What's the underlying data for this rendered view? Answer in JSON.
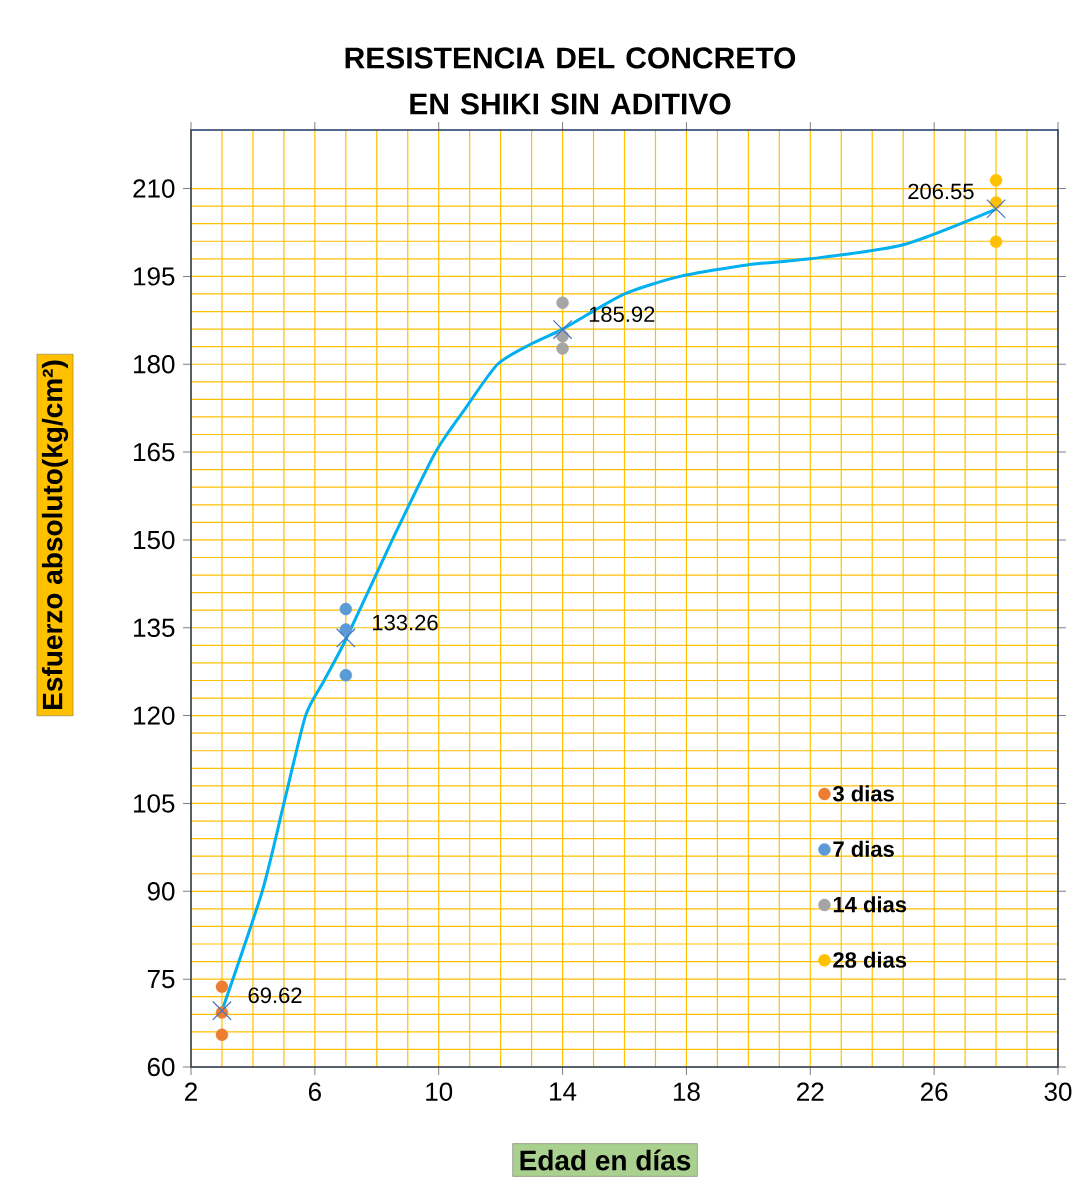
{
  "chart_data": {
    "type": "scatter",
    "title": "RESISTENCIA DEL CONCRETO EN SHIKI SIN ADITIVO",
    "xlabel": "Edad en días",
    "ylabel": "Esfuerzo absoluto(kg/cm²)",
    "xlim": [
      2,
      30
    ],
    "ylim": [
      60,
      220
    ],
    "xticks": [
      2,
      6,
      10,
      14,
      18,
      22,
      26,
      30
    ],
    "yticks": [
      60,
      75,
      90,
      105,
      120,
      135,
      150,
      165,
      180,
      195,
      210
    ],
    "grid": true,
    "legend": "bottom right",
    "series": [
      {
        "name": "3 dias",
        "color": "#ed7d31",
        "marker": "circle",
        "x": [
          3,
          3,
          3
        ],
        "values": [
          73.7,
          69.3,
          65.5
        ]
      },
      {
        "name": "7 dias",
        "color": "#5b9bd5",
        "marker": "circle",
        "x": [
          7,
          7,
          7
        ],
        "values": [
          138.2,
          134.7,
          126.9
        ]
      },
      {
        "name": "14 dias",
        "color": "#a5a5a5",
        "marker": "circle",
        "x": [
          14,
          14,
          14
        ],
        "values": [
          190.5,
          184.8,
          182.7
        ]
      },
      {
        "name": "28 dias",
        "color": "#ffc000",
        "marker": "circle",
        "x": [
          28,
          28,
          28
        ],
        "values": [
          211.4,
          207.6,
          200.9
        ]
      },
      {
        "type": "line",
        "color": "#00b0f0",
        "marker": "none",
        "x": [
          3,
          4.3,
          5,
          5.7,
          6.3,
          7,
          8.5,
          9.9,
          10.8,
          11.9,
          13,
          14,
          16,
          17.8,
          20,
          22,
          25,
          28
        ],
        "values": [
          69.6,
          90,
          105,
          120,
          126,
          133,
          150,
          165,
          172,
          180,
          183.5,
          186,
          192,
          195,
          197,
          198,
          200.4,
          206.5
        ]
      },
      {
        "color": "#4472c4",
        "marker": "cross",
        "data_labels": true,
        "x": [
          3,
          7,
          14,
          28
        ],
        "values": [
          69.62,
          133.26,
          185.92,
          206.55
        ]
      }
    ]
  }
}
